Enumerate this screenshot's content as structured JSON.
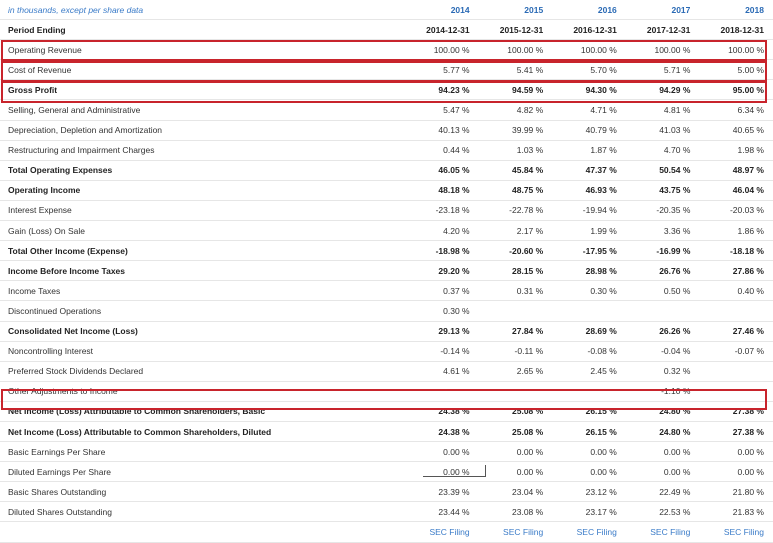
{
  "note": "in thousands, except per share data",
  "years": [
    "2014",
    "2015",
    "2016",
    "2017",
    "2018"
  ],
  "period": {
    "label": "Period Ending",
    "values": [
      "2014-12-31",
      "2015-12-31",
      "2016-12-31",
      "2017-12-31",
      "2018-12-31"
    ]
  },
  "rows": [
    {
      "label": "Operating Revenue",
      "bold": false,
      "values": [
        "100.00 %",
        "100.00 %",
        "100.00 %",
        "100.00 %",
        "100.00 %"
      ]
    },
    {
      "label": "Cost of Revenue",
      "bold": false,
      "values": [
        "5.77 %",
        "5.41 %",
        "5.70 %",
        "5.71 %",
        "5.00 %"
      ]
    },
    {
      "label": "Gross Profit",
      "bold": true,
      "values": [
        "94.23 %",
        "94.59 %",
        "94.30 %",
        "94.29 %",
        "95.00 %"
      ]
    },
    {
      "label": "Selling, General and Administrative",
      "bold": false,
      "values": [
        "5.47 %",
        "4.82 %",
        "4.71 %",
        "4.81 %",
        "6.34 %"
      ]
    },
    {
      "label": "Depreciation, Depletion and Amortization",
      "bold": false,
      "values": [
        "40.13 %",
        "39.99 %",
        "40.79 %",
        "41.03 %",
        "40.65 %"
      ]
    },
    {
      "label": "Restructuring and Impairment Charges",
      "bold": false,
      "values": [
        "0.44 %",
        "1.03 %",
        "1.87 %",
        "4.70 %",
        "1.98 %"
      ]
    },
    {
      "label": "Total Operating Expenses",
      "bold": true,
      "values": [
        "46.05 %",
        "45.84 %",
        "47.37 %",
        "50.54 %",
        "48.97 %"
      ]
    },
    {
      "label": "Operating Income",
      "bold": true,
      "values": [
        "48.18 %",
        "48.75 %",
        "46.93 %",
        "43.75 %",
        "46.04 %"
      ]
    },
    {
      "label": "Interest Expense",
      "bold": false,
      "values": [
        "-23.18 %",
        "-22.78 %",
        "-19.94 %",
        "-20.35 %",
        "-20.03 %"
      ]
    },
    {
      "label": "Gain (Loss) On Sale",
      "bold": false,
      "values": [
        "4.20 %",
        "2.17 %",
        "1.99 %",
        "3.36 %",
        "1.86 %"
      ]
    },
    {
      "label": "Total Other Income (Expense)",
      "bold": true,
      "values": [
        "-18.98 %",
        "-20.60 %",
        "-17.95 %",
        "-16.99 %",
        "-18.18 %"
      ]
    },
    {
      "label": "Income Before Income Taxes",
      "bold": true,
      "values": [
        "29.20 %",
        "28.15 %",
        "28.98 %",
        "26.76 %",
        "27.86 %"
      ]
    },
    {
      "label": "Income Taxes",
      "bold": false,
      "values": [
        "0.37 %",
        "0.31 %",
        "0.30 %",
        "0.50 %",
        "0.40 %"
      ]
    },
    {
      "label": "Discontinued Operations",
      "bold": false,
      "values": [
        "0.30 %",
        "",
        "",
        "",
        ""
      ]
    },
    {
      "label": "Consolidated Net Income (Loss)",
      "bold": true,
      "values": [
        "29.13 %",
        "27.84 %",
        "28.69 %",
        "26.26 %",
        "27.46 %"
      ]
    },
    {
      "label": "Noncontrolling Interest",
      "bold": false,
      "values": [
        "-0.14 %",
        "-0.11 %",
        "-0.08 %",
        "-0.04 %",
        "-0.07 %"
      ]
    },
    {
      "label": "Preferred Stock Dividends Declared",
      "bold": false,
      "values": [
        "4.61 %",
        "2.65 %",
        "2.45 %",
        "0.32 %",
        ""
      ]
    },
    {
      "label": "Other Adjustments to Income",
      "bold": false,
      "values": [
        "",
        "",
        "",
        "-1.10 %",
        ""
      ]
    },
    {
      "label": "Net Income (Loss) Attributable to Common Shareholders, Basic",
      "bold": true,
      "values": [
        "24.38 %",
        "25.08 %",
        "26.15 %",
        "24.80 %",
        "27.38 %"
      ]
    },
    {
      "label": "Net Income (Loss) Attributable to Common Shareholders, Diluted",
      "bold": true,
      "values": [
        "24.38 %",
        "25.08 %",
        "26.15 %",
        "24.80 %",
        "27.38 %"
      ]
    },
    {
      "label": "Basic Earnings Per Share",
      "bold": false,
      "values": [
        "0.00 %",
        "0.00 %",
        "0.00 %",
        "0.00 %",
        "0.00 %"
      ]
    },
    {
      "label": "Diluted Earnings Per Share",
      "bold": false,
      "values": [
        "0.00 %",
        "0.00 %",
        "0.00 %",
        "0.00 %",
        "0.00 %"
      ]
    },
    {
      "label": "Basic Shares Outstanding",
      "bold": false,
      "values": [
        "23.39 %",
        "23.04 %",
        "23.12 %",
        "22.49 %",
        "21.80 %"
      ]
    },
    {
      "label": "Diluted Shares Outstanding",
      "bold": false,
      "values": [
        "23.44 %",
        "23.08 %",
        "23.17 %",
        "22.53 %",
        "21.83 %"
      ]
    }
  ],
  "sec_filing": [
    "SEC Filing",
    "SEC Filing",
    "SEC Filing",
    "SEC Filing",
    "SEC Filing"
  ],
  "colors": {
    "highlight": "#c8242c",
    "link": "#3a7bc8"
  }
}
